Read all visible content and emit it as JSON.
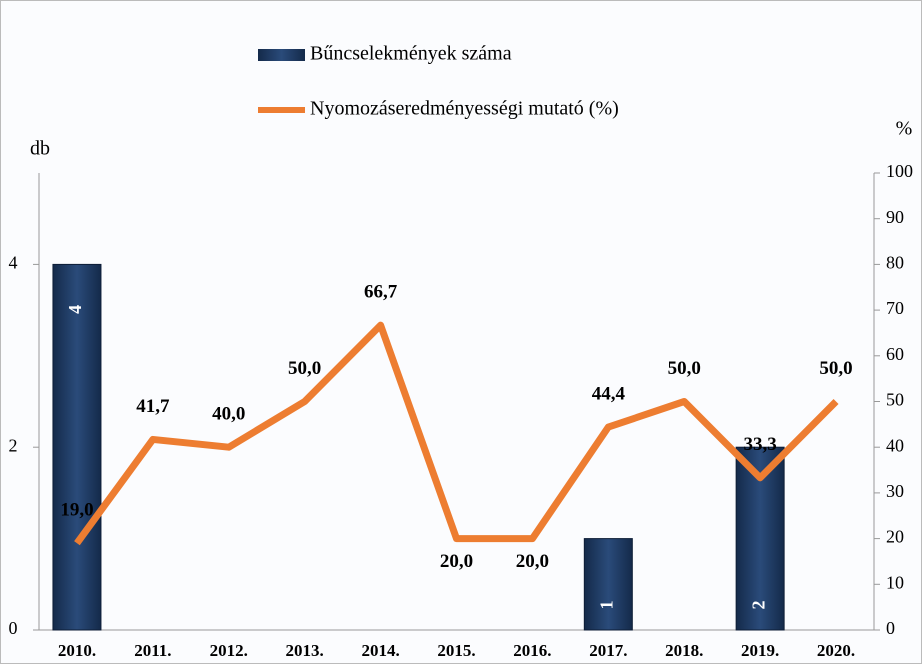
{
  "chart_data": {
    "type": "bar-line",
    "legend": [
      "Bűncselekmények száma",
      "Nyomozáseredményességi mutató (%)"
    ],
    "ylabel": "db",
    "y2label": "%",
    "categories": [
      "2010.",
      "2011.",
      "2012.",
      "2013.",
      "2014.",
      "2015.",
      "2016.",
      "2017.",
      "2018.",
      "2019.",
      "2020."
    ],
    "series": [
      {
        "name": "Bűncselekmények száma",
        "type": "bar",
        "color": "#1f3a63",
        "axis": "y",
        "values": [
          4,
          0,
          0,
          0,
          0,
          0,
          0,
          1,
          0,
          2,
          0
        ]
      },
      {
        "name": "Nyomozáseredményességi mutató (%)",
        "type": "line",
        "color": "#ed7d31",
        "axis": "y2",
        "values": [
          19.0,
          41.7,
          40.0,
          50.0,
          66.7,
          20.0,
          20.0,
          44.4,
          50.0,
          33.3,
          50.0
        ],
        "value_labels": [
          "19,0",
          "41,7",
          "40,0",
          "50,0",
          "66,7",
          "20,0",
          "20,0",
          "44,4",
          "50,0",
          "33,3",
          "50,0"
        ]
      }
    ],
    "ylim": [
      0,
      5
    ],
    "yticks": [
      0,
      2,
      4
    ],
    "y2lim": [
      0,
      100
    ],
    "y2ticks": [
      0,
      10,
      20,
      30,
      40,
      50,
      60,
      70,
      80,
      90,
      100
    ]
  }
}
